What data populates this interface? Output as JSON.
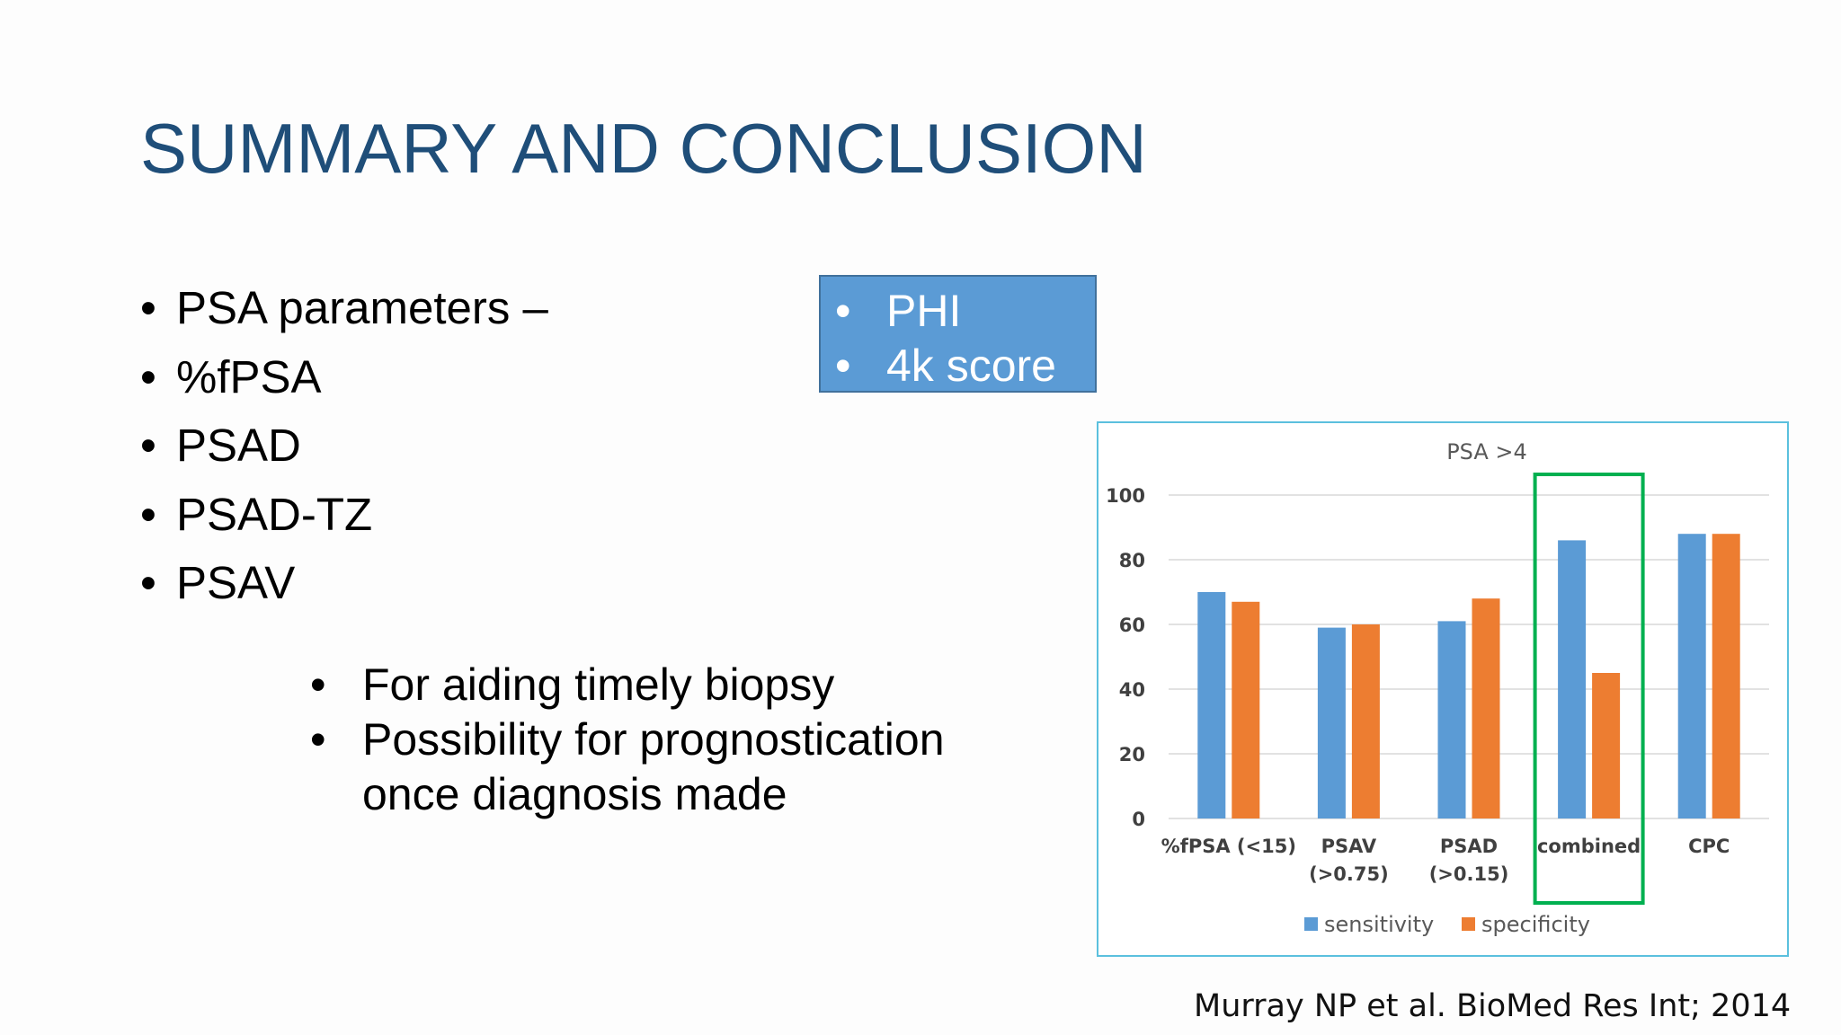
{
  "slide": {
    "title": "SUMMARY AND CONCLUSION",
    "bullets": [
      "PSA parameters –",
      "%fPSA",
      "PSAD",
      "PSAD-TZ",
      "PSAV"
    ],
    "sub_bullets": [
      "For aiding timely biopsy",
      "Possibility for prognostication\nonce diagnosis made"
    ],
    "callout": [
      "PHI",
      "4k score"
    ],
    "bullet_glyph": "•",
    "citation": "Murray NP et al. BioMed Res Int; 2014"
  },
  "colors": {
    "title": "#1f4e79",
    "callout_bg": "#5b9bd5",
    "sensitivity": "#5b9bd5",
    "specificity": "#ed7d31",
    "highlight": "#00b050",
    "frame": "#5bc0de"
  },
  "chart_data": {
    "type": "bar",
    "title": "PSA >4",
    "categories": [
      [
        "%fPSA (<15)"
      ],
      [
        "PSAV",
        "(>0.75)"
      ],
      [
        "PSAD",
        "(>0.15)"
      ],
      [
        "combined"
      ],
      [
        "CPC"
      ]
    ],
    "series": [
      {
        "name": "sensitivity",
        "values": [
          70,
          59,
          61,
          86,
          88
        ]
      },
      {
        "name": "specificity",
        "values": [
          67,
          60,
          68,
          45,
          88
        ]
      }
    ],
    "ylim": [
      0,
      100
    ],
    "yticks": [
      0,
      20,
      40,
      60,
      80,
      100
    ],
    "grid": true,
    "legend": "bottom",
    "highlighted_category": "combined"
  }
}
